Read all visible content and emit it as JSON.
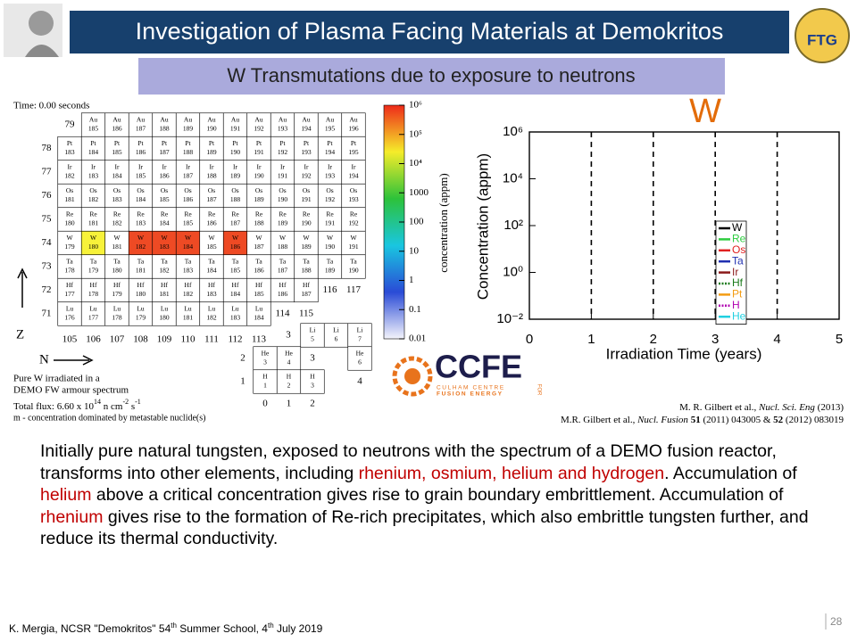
{
  "header": {
    "title": "Investigation of Plasma Facing Materials at Demokritos",
    "subtitle": "W Transmutations due to exposure to neutrons",
    "logo_right": "FTG"
  },
  "nuclide_chart": {
    "time": "Time: 0.00 seconds",
    "rows": [
      {
        "z": "79",
        "cells": [
          [
            "Au",
            "185"
          ],
          [
            "Au",
            "186"
          ],
          [
            "Au",
            "187"
          ],
          [
            "Au",
            "188"
          ],
          [
            "Au",
            "189"
          ],
          [
            "Au",
            "190"
          ],
          [
            "Au",
            "191"
          ],
          [
            "Au",
            "192"
          ],
          [
            "Au",
            "193"
          ],
          [
            "Au",
            "194"
          ],
          [
            "Au",
            "195"
          ],
          [
            "Au",
            "196"
          ]
        ]
      },
      {
        "z": "78",
        "cells": [
          [
            "Pt",
            "183"
          ],
          [
            "Pt",
            "184"
          ],
          [
            "Pt",
            "185"
          ],
          [
            "Pt",
            "186"
          ],
          [
            "Pt",
            "187"
          ],
          [
            "Pt",
            "188"
          ],
          [
            "Pt",
            "189"
          ],
          [
            "Pt",
            "190"
          ],
          [
            "Pt",
            "191"
          ],
          [
            "Pt",
            "192"
          ],
          [
            "Pt",
            "193"
          ],
          [
            "Pt",
            "194"
          ],
          [
            "Pt",
            "195"
          ]
        ]
      },
      {
        "z": "77",
        "cells": [
          [
            "Ir",
            "182"
          ],
          [
            "Ir",
            "183"
          ],
          [
            "Ir",
            "184"
          ],
          [
            "Ir",
            "185"
          ],
          [
            "Ir",
            "186"
          ],
          [
            "Ir",
            "187"
          ],
          [
            "Ir",
            "188"
          ],
          [
            "Ir",
            "189"
          ],
          [
            "Ir",
            "190"
          ],
          [
            "Ir",
            "191"
          ],
          [
            "Ir",
            "192"
          ],
          [
            "Ir",
            "193"
          ],
          [
            "Ir",
            "194"
          ]
        ]
      },
      {
        "z": "76",
        "cells": [
          [
            "Os",
            "181"
          ],
          [
            "Os",
            "182"
          ],
          [
            "Os",
            "183"
          ],
          [
            "Os",
            "184"
          ],
          [
            "Os",
            "185"
          ],
          [
            "Os",
            "186"
          ],
          [
            "Os",
            "187"
          ],
          [
            "Os",
            "188"
          ],
          [
            "Os",
            "189"
          ],
          [
            "Os",
            "190"
          ],
          [
            "Os",
            "191"
          ],
          [
            "Os",
            "192"
          ],
          [
            "Os",
            "193"
          ]
        ]
      },
      {
        "z": "75",
        "cells": [
          [
            "Re",
            "180"
          ],
          [
            "Re",
            "181"
          ],
          [
            "Re",
            "182"
          ],
          [
            "Re",
            "183"
          ],
          [
            "Re",
            "184"
          ],
          [
            "Re",
            "185"
          ],
          [
            "Re",
            "186"
          ],
          [
            "Re",
            "187"
          ],
          [
            "Re",
            "188"
          ],
          [
            "Re",
            "189"
          ],
          [
            "Re",
            "190"
          ],
          [
            "Re",
            "191"
          ],
          [
            "Re",
            "192"
          ]
        ]
      },
      {
        "z": "74",
        "cells": [
          [
            "W",
            "179"
          ],
          [
            "W",
            "180",
            "#f7f23a"
          ],
          [
            "W",
            "181"
          ],
          [
            "W",
            "182",
            "#ee4a24"
          ],
          [
            "W",
            "183",
            "#ee4a24"
          ],
          [
            "W",
            "184",
            "#ee4a24"
          ],
          [
            "W",
            "185"
          ],
          [
            "W",
            "186",
            "#ee4a24"
          ],
          [
            "W",
            "187"
          ],
          [
            "W",
            "188"
          ],
          [
            "W",
            "189"
          ],
          [
            "W",
            "190"
          ],
          [
            "W",
            "191"
          ]
        ]
      },
      {
        "z": "73",
        "cells": [
          [
            "Ta",
            "178"
          ],
          [
            "Ta",
            "179"
          ],
          [
            "Ta",
            "180"
          ],
          [
            "Ta",
            "181"
          ],
          [
            "Ta",
            "182"
          ],
          [
            "Ta",
            "183"
          ],
          [
            "Ta",
            "184"
          ],
          [
            "Ta",
            "185"
          ],
          [
            "Ta",
            "186"
          ],
          [
            "Ta",
            "187"
          ],
          [
            "Ta",
            "188"
          ],
          [
            "Ta",
            "189"
          ],
          [
            "Ta",
            "190"
          ]
        ]
      },
      {
        "z": "72",
        "cells": [
          [
            "Hf",
            "177"
          ],
          [
            "Hf",
            "178"
          ],
          [
            "Hf",
            "179"
          ],
          [
            "Hf",
            "180"
          ],
          [
            "Hf",
            "181"
          ],
          [
            "Hf",
            "182"
          ],
          [
            "Hf",
            "183"
          ],
          [
            "Hf",
            "184"
          ],
          [
            "Hf",
            "185"
          ],
          [
            "Hf",
            "186"
          ],
          [
            "Hf",
            "187"
          ]
        ],
        "n_labels": [
          "116",
          "117"
        ]
      },
      {
        "z": "71",
        "cells": [
          [
            "Lu",
            "176"
          ],
          [
            "Lu",
            "177"
          ],
          [
            "Lu",
            "178"
          ],
          [
            "Lu",
            "179"
          ],
          [
            "Lu",
            "180"
          ],
          [
            "Lu",
            "181"
          ],
          [
            "Lu",
            "182"
          ],
          [
            "Lu",
            "183"
          ],
          [
            "Lu",
            "184"
          ]
        ],
        "n_labels": [
          "114",
          "115"
        ]
      }
    ],
    "n_labels": [
      "105",
      "106",
      "107",
      "108",
      "109",
      "110",
      "111",
      "112",
      "113"
    ],
    "light_rows": [
      {
        "z": "3",
        "items": [
          [
            "Li",
            "5"
          ],
          [
            "Li",
            "6"
          ],
          [
            "Li",
            "7"
          ]
        ]
      },
      {
        "z": "2",
        "items": [
          [
            "He",
            "3"
          ],
          [
            "He",
            "4"
          ],
          "3",
          [
            "He",
            "6"
          ]
        ]
      },
      {
        "z": "1",
        "items": [
          [
            "H",
            "1"
          ],
          [
            "H",
            "2"
          ],
          [
            "H",
            "3"
          ],
          "4"
        ]
      }
    ],
    "light_n_labels": [
      "0",
      "1",
      "2"
    ],
    "z_axis": "Z",
    "n_axis": "N",
    "notes": [
      "Pure W irradiated in a",
      "DEMO FW armour spectrum"
    ],
    "flux": [
      {
        "text": "Total flux: 6.60 x 10"
      },
      {
        "text": "14",
        "sup": true
      },
      {
        "text": " n cm"
      },
      {
        "text": "-2",
        "sup": true
      },
      {
        "text": " s"
      },
      {
        "text": "-1",
        "sup": true
      }
    ],
    "metastable": "m - concentration dominated by metastable nuclide(s)"
  },
  "colorbar": {
    "label": "concentration (appm)",
    "lim": [
      0.01,
      1000000
    ],
    "log": true,
    "ticks": [
      {
        "value": 1000000,
        "label": "10⁶"
      },
      {
        "value": 100000,
        "label": "10⁵"
      },
      {
        "value": 10000,
        "label": "10⁴"
      },
      1000,
      100,
      10,
      1,
      0.1,
      0.01
    ],
    "colors": [
      "#f4f4fb",
      "#2a4bd6",
      "#19c6e0",
      "#2dc23a",
      "#f5ec2a",
      "#ee2a1a"
    ]
  },
  "plot": {
    "label": "W",
    "label_color": "#e36c09",
    "xlabel": "Irradiation Time (years)",
    "ylabel": "Concentration (appm)",
    "xlim": [
      0,
      5
    ],
    "xticks": [
      0,
      1,
      2,
      3,
      4,
      5
    ],
    "ylim": [
      0.01,
      1000000
    ],
    "log_y": true,
    "yticks": [
      {
        "value": 0.01,
        "label": "10⁻²"
      },
      {
        "value": 1,
        "label": "10⁰"
      },
      {
        "value": 100,
        "label": "10²"
      },
      {
        "value": 10000,
        "label": "10⁴"
      },
      {
        "value": 1000000,
        "label": "10⁶"
      }
    ],
    "grid": "dashed",
    "series": [
      {
        "name": "W",
        "color": "#000000"
      },
      {
        "name": "Re",
        "color": "#2ecc40"
      },
      {
        "name": "Os",
        "color": "#e02020"
      },
      {
        "name": "Ta",
        "color": "#1f2fb0"
      },
      {
        "name": "Ir",
        "color": "#8b1a1a"
      },
      {
        "name": "Hf",
        "color": "#1a7a1a",
        "dash": true
      },
      {
        "name": "Pt",
        "color": "#f39c12"
      },
      {
        "name": "H",
        "color": "#b000b0",
        "dash": true
      },
      {
        "name": "He",
        "color": "#20d0e0"
      }
    ]
  },
  "ccfe": {
    "name": "CCFE",
    "line1": "CULHAM CENTRE",
    "line2": "FUSION ENERGY",
    "side": "FOR"
  },
  "references": [
    [
      {
        "text": "M. R. Gilbert et al., "
      },
      {
        "text": "Nucl. Sci. Eng",
        "italic": true
      },
      {
        "text": " (2013)"
      }
    ],
    [
      {
        "text": "M.R. Gilbert et al., "
      },
      {
        "text": "Nucl. Fusion",
        "italic": true
      },
      {
        "text": " 51",
        "bold": true
      },
      {
        "text": " (2011) 043005 & "
      },
      {
        "text": "52",
        "bold": true
      },
      {
        "text": " (2012) 083019"
      }
    ]
  ],
  "paragraph": [
    {
      "text": "Initially pure natural tungsten, exposed to neutrons with the spectrum of a DEMO fusion reactor, transforms into other elements, including "
    },
    {
      "text": "rhenium, osmium, helium and hydrogen",
      "color": "#c00000"
    },
    {
      "text": ". Accumulation of "
    },
    {
      "text": "helium",
      "color": "#c00000"
    },
    {
      "text": " above a critical concentration gives rise to grain boundary embrittlement. Accumulation of "
    },
    {
      "text": "rhenium",
      "color": "#c00000"
    },
    {
      "text": " gives rise to the formation of Re-rich precipitates, which also embrittle tungsten further, and reduce its thermal conductivity."
    }
  ],
  "footer": [
    {
      "text": "K. Mergia, NCSR \"Demokritos\" 54"
    },
    {
      "text": "th",
      "sup": true
    },
    {
      "text": " Summer School, 4"
    },
    {
      "text": "th",
      "sup": true
    },
    {
      "text": " July 2019"
    }
  ],
  "page_number": "28"
}
